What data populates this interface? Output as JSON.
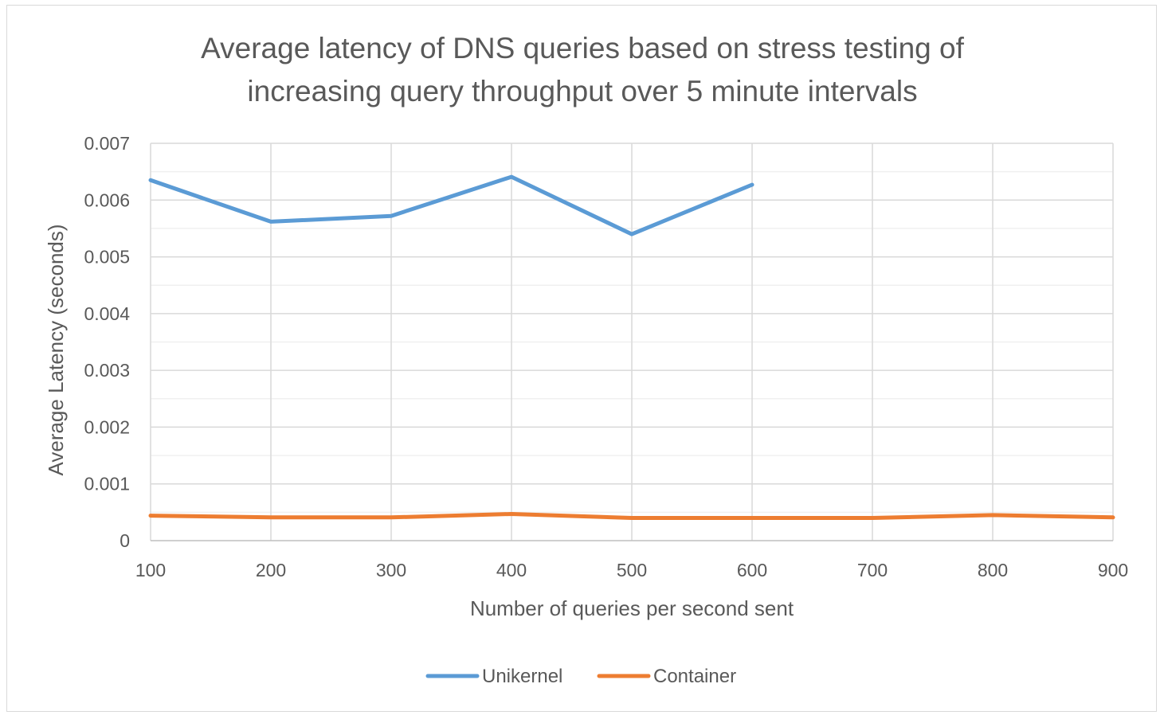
{
  "chart_data": {
    "type": "line",
    "title_lines": [
      "Average latency of DNS queries based on stress testing of",
      "increasing query throughput over 5 minute intervals"
    ],
    "xlabel": "Number of queries per second sent",
    "ylabel": "Average Latency (seconds)",
    "x": [
      100,
      200,
      300,
      400,
      500,
      600,
      700,
      800,
      900
    ],
    "x_tick_labels": [
      "100",
      "200",
      "300",
      "400",
      "500",
      "600",
      "700",
      "800",
      "900"
    ],
    "y_ticks": [
      0,
      0.001,
      0.002,
      0.003,
      0.004,
      0.005,
      0.006,
      0.007
    ],
    "y_tick_labels": [
      "0",
      "0.001",
      "0.002",
      "0.003",
      "0.004",
      "0.005",
      "0.006",
      "0.007"
    ],
    "ylim": [
      0,
      0.007
    ],
    "xlim": [
      100,
      900
    ],
    "grid": true,
    "legend_position": "bottom",
    "series": [
      {
        "name": "Unikernel",
        "color": "#5b9bd5",
        "values": [
          0.00635,
          0.00562,
          0.00572,
          0.00641,
          0.0054,
          0.00627,
          null,
          null,
          null
        ]
      },
      {
        "name": "Container",
        "color": "#ed7d31",
        "values": [
          0.00044,
          0.00041,
          0.00041,
          0.00047,
          0.0004,
          0.0004,
          0.0004,
          0.00045,
          0.00041
        ]
      }
    ]
  }
}
